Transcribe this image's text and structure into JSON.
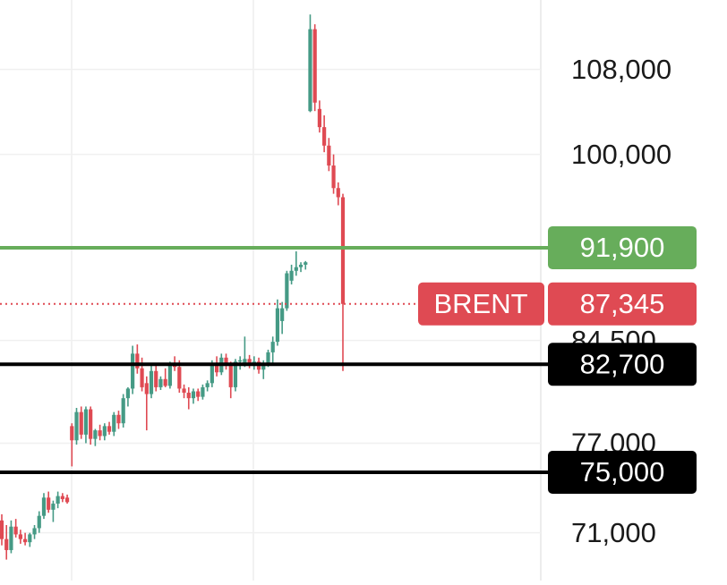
{
  "chart_data": {
    "type": "candlestick",
    "log_scale": true,
    "grid": true,
    "ylim": [
      68000,
      115000
    ],
    "yticks": [
      {
        "value": 108000,
        "label": "108,000"
      },
      {
        "value": 100000,
        "label": "100,000"
      },
      {
        "value": 84500,
        "label": "84,500"
      },
      {
        "value": 77000,
        "label": "77,000"
      },
      {
        "value": 71000,
        "label": "71,000"
      }
    ],
    "up_color": "#459a85",
    "down_color": "#df4a53",
    "open": [
      71800,
      70600,
      69900,
      71400,
      70900,
      70600,
      70400,
      70900,
      71300,
      72100,
      73300,
      72500,
      72900,
      73400,
      73300,
      78200,
      77200,
      79200,
      77600,
      79400,
      77300,
      77900,
      77500,
      78200,
      77800,
      79000,
      78400,
      80200,
      80900,
      83500,
      82400,
      81300,
      80500,
      82200,
      81000,
      81600,
      81100,
      82700,
      82500,
      80900,
      80600,
      80200,
      80700,
      80300,
      81000,
      81300,
      82700,
      82100,
      83200,
      82600,
      81000,
      82900,
      82800,
      83100,
      82600,
      82900,
      82300,
      82800,
      83600,
      84400,
      86000,
      87000,
      89200,
      90000,
      90300,
      90500,
      104000,
      112000,
      104200,
      102500,
      100800,
      99000,
      97000,
      96200
    ],
    "high": [
      72200,
      71500,
      71800,
      71900,
      71200,
      71000,
      71000,
      71500,
      72400,
      73600,
      73700,
      73100,
      73700,
      73600,
      73500,
      78400,
      79500,
      79600,
      79600,
      79600,
      78000,
      78300,
      78400,
      78500,
      79200,
      79300,
      80500,
      81000,
      84100,
      84200,
      83200,
      81800,
      82600,
      82800,
      81800,
      82400,
      82900,
      83300,
      83000,
      81200,
      81000,
      80900,
      80900,
      81200,
      81500,
      83000,
      83300,
      83500,
      83500,
      82900,
      83100,
      83300,
      84800,
      83400,
      83300,
      83200,
      83000,
      83800,
      84800,
      87700,
      87500,
      90000,
      90500,
      91600,
      90700,
      90800,
      113500,
      112500,
      105000,
      103600,
      101500,
      100000,
      97500,
      96500
    ],
    "low": [
      70200,
      69300,
      69700,
      70700,
      70300,
      70200,
      70100,
      70600,
      71000,
      71900,
      72300,
      71700,
      72600,
      73000,
      72900,
      75400,
      76900,
      77300,
      77000,
      76900,
      76800,
      77200,
      77200,
      77600,
      77500,
      78000,
      78100,
      79600,
      80500,
      82000,
      80700,
      77900,
      80200,
      80700,
      80800,
      81000,
      80900,
      82200,
      80600,
      80200,
      79400,
      79800,
      80000,
      80100,
      80700,
      81000,
      81800,
      81900,
      82300,
      80200,
      80700,
      82300,
      82500,
      82400,
      82300,
      82000,
      81600,
      82500,
      82600,
      84100,
      85000,
      86800,
      88900,
      89600,
      89900,
      90100,
      103900,
      104000,
      102000,
      100200,
      98500,
      96500,
      95500,
      82200
    ],
    "close": [
      70600,
      69900,
      71400,
      70900,
      70600,
      70400,
      70900,
      71300,
      72100,
      73300,
      72500,
      72900,
      73400,
      73200,
      73000,
      77200,
      79200,
      77600,
      79400,
      77300,
      77900,
      77500,
      78200,
      77800,
      79000,
      78400,
      80200,
      80900,
      83500,
      82400,
      81000,
      80500,
      82200,
      81000,
      81600,
      81100,
      82700,
      82500,
      80900,
      80600,
      80200,
      80700,
      80300,
      81000,
      81300,
      82700,
      82100,
      83200,
      82600,
      81000,
      82900,
      83000,
      83100,
      82600,
      82900,
      82300,
      82800,
      83600,
      84400,
      87000,
      87000,
      89800,
      90000,
      90300,
      90500,
      90700,
      112000,
      104800,
      102500,
      100800,
      99000,
      97000,
      96200,
      87345
    ],
    "levels": [
      {
        "value": 91900,
        "label": "91,900",
        "color": "#67ad5b",
        "line": "solid"
      },
      {
        "name": "BRENT",
        "value": 87345,
        "label": "87,345",
        "color": "#df4a53",
        "line": "dotted"
      },
      {
        "value": 82700,
        "label": "82,700",
        "color": "#000000",
        "line": "solid"
      },
      {
        "value": 75000,
        "label": "75,000",
        "color": "#000000",
        "line": "solid"
      }
    ]
  }
}
